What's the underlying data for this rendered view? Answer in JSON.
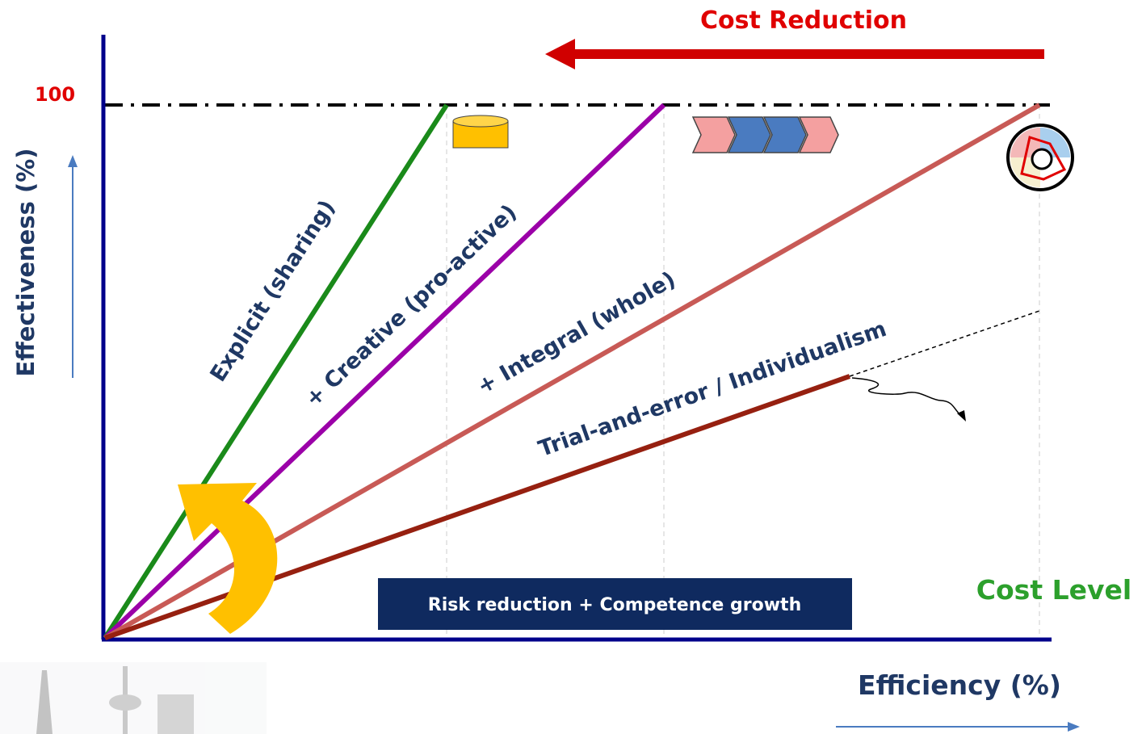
{
  "header": {
    "title": "Cost Reduction"
  },
  "axes": {
    "y_label": "Effectiveness (%)",
    "y_max_label": "100",
    "x_label": "Efficiency (%)",
    "x_end_label": "Cost Level"
  },
  "lines": [
    {
      "label": "Explicit (sharing)"
    },
    {
      "label": "+ Creative (pro-active)"
    },
    {
      "label": "+ Integral (whole)"
    },
    {
      "label": "Trial-and-error / Individualism"
    }
  ],
  "banner": {
    "text": "Risk reduction + Competence growth"
  }
}
